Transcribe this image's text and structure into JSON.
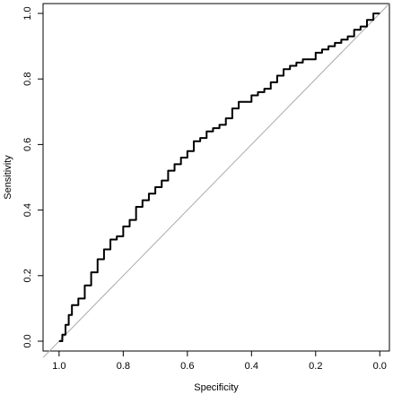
{
  "chart_data": {
    "type": "line",
    "xlabel": "Specificity",
    "ylabel": "Sensitivity",
    "xlim": [
      1.05,
      -0.03
    ],
    "ylim": [
      -0.03,
      1.03
    ],
    "x_reversed": true,
    "grid": false,
    "legend": "none",
    "x_ticks": [
      {
        "value": 1.0,
        "label": "1.0"
      },
      {
        "value": 0.8,
        "label": "0.8"
      },
      {
        "value": 0.6,
        "label": "0.6"
      },
      {
        "value": 0.4,
        "label": "0.4"
      },
      {
        "value": 0.2,
        "label": "0.2"
      },
      {
        "value": 0.0,
        "label": "0.0"
      }
    ],
    "y_ticks": [
      {
        "value": 0.0,
        "label": "0.0"
      },
      {
        "value": 0.2,
        "label": "0.2"
      },
      {
        "value": 0.4,
        "label": "0.4"
      },
      {
        "value": 0.6,
        "label": "0.6"
      },
      {
        "value": 0.8,
        "label": "0.8"
      },
      {
        "value": 1.0,
        "label": "1.0"
      }
    ],
    "reference_line": {
      "from": [
        1.05,
        -0.05
      ],
      "to": [
        -0.03,
        1.03
      ],
      "color": "#aaaaaa"
    },
    "series": [
      {
        "color": "#000000",
        "points": [
          [
            1.0,
            0.0
          ],
          [
            0.99,
            0.02
          ],
          [
            0.98,
            0.05
          ],
          [
            0.97,
            0.08
          ],
          [
            0.96,
            0.11
          ],
          [
            0.94,
            0.13
          ],
          [
            0.92,
            0.17
          ],
          [
            0.9,
            0.21
          ],
          [
            0.88,
            0.25
          ],
          [
            0.86,
            0.28
          ],
          [
            0.84,
            0.31
          ],
          [
            0.82,
            0.32
          ],
          [
            0.8,
            0.35
          ],
          [
            0.78,
            0.37
          ],
          [
            0.76,
            0.41
          ],
          [
            0.74,
            0.43
          ],
          [
            0.72,
            0.45
          ],
          [
            0.7,
            0.47
          ],
          [
            0.68,
            0.49
          ],
          [
            0.66,
            0.52
          ],
          [
            0.64,
            0.54
          ],
          [
            0.62,
            0.56
          ],
          [
            0.6,
            0.58
          ],
          [
            0.58,
            0.61
          ],
          [
            0.56,
            0.62
          ],
          [
            0.54,
            0.64
          ],
          [
            0.52,
            0.65
          ],
          [
            0.5,
            0.66
          ],
          [
            0.48,
            0.68
          ],
          [
            0.46,
            0.71
          ],
          [
            0.44,
            0.73
          ],
          [
            0.42,
            0.73
          ],
          [
            0.4,
            0.75
          ],
          [
            0.38,
            0.76
          ],
          [
            0.36,
            0.77
          ],
          [
            0.34,
            0.79
          ],
          [
            0.32,
            0.81
          ],
          [
            0.3,
            0.83
          ],
          [
            0.28,
            0.84
          ],
          [
            0.26,
            0.85
          ],
          [
            0.24,
            0.86
          ],
          [
            0.22,
            0.86
          ],
          [
            0.2,
            0.88
          ],
          [
            0.18,
            0.89
          ],
          [
            0.16,
            0.9
          ],
          [
            0.14,
            0.91
          ],
          [
            0.12,
            0.92
          ],
          [
            0.1,
            0.93
          ],
          [
            0.08,
            0.95
          ],
          [
            0.06,
            0.96
          ],
          [
            0.04,
            0.98
          ],
          [
            0.02,
            1.0
          ],
          [
            0.0,
            1.0
          ]
        ]
      }
    ]
  },
  "style": {
    "curve_color": "#000000",
    "reference_color": "#aaaaaa",
    "axis_color": "#000000"
  }
}
